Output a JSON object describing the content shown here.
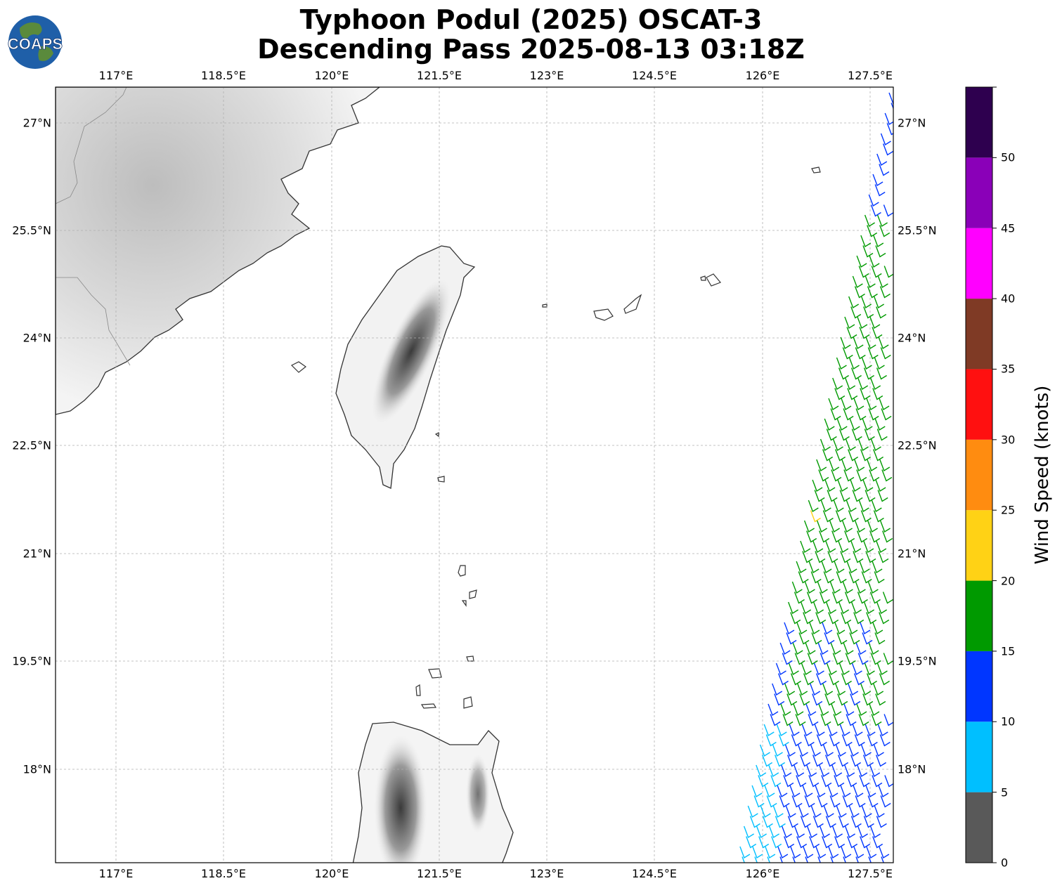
{
  "title": {
    "line1": "Typhoon Podul (2025) OSCAT-3",
    "line2": "Descending Pass 2025-08-13 03:18Z"
  },
  "logo": {
    "text": "COAPS",
    "colors": {
      "ocean": "#1f5fa8",
      "land": "#5a8a3c"
    }
  },
  "map": {
    "lon_ticks": [
      "117°E",
      "118.5°E",
      "120°E",
      "121.5°E",
      "123°E",
      "124.5°E",
      "126°E",
      "127.5°E"
    ],
    "lat_ticks": [
      "27°N",
      "25.5°N",
      "24°N",
      "22.5°N",
      "21°N",
      "19.5°N",
      "18°N"
    ],
    "coastline_color": "#333333",
    "terrain_colors": [
      "#ffffff",
      "#3a3a3a"
    ],
    "gridline_color": "#b0b0b0"
  },
  "colorbar": {
    "title": "Wind Speed (knots)",
    "ticks": [
      "0",
      "5",
      "10",
      "15",
      "20",
      "25",
      "30",
      "35",
      "40",
      "45",
      "50"
    ],
    "bins": [
      {
        "range": "0-5",
        "color": "#595959"
      },
      {
        "range": "5-10",
        "color": "#00bfff"
      },
      {
        "range": "10-15",
        "color": "#0036ff"
      },
      {
        "range": "15-20",
        "color": "#009a00"
      },
      {
        "range": "20-25",
        "color": "#ffd215"
      },
      {
        "range": "25-30",
        "color": "#ff8c10"
      },
      {
        "range": "30-35",
        "color": "#ff1010"
      },
      {
        "range": "35-40",
        "color": "#7f3a25"
      },
      {
        "range": "40-45",
        "color": "#ff00ff"
      },
      {
        "range": "45-50",
        "color": "#8a00b8"
      },
      {
        "range": "50+",
        "color": "#2e004f"
      }
    ]
  }
}
